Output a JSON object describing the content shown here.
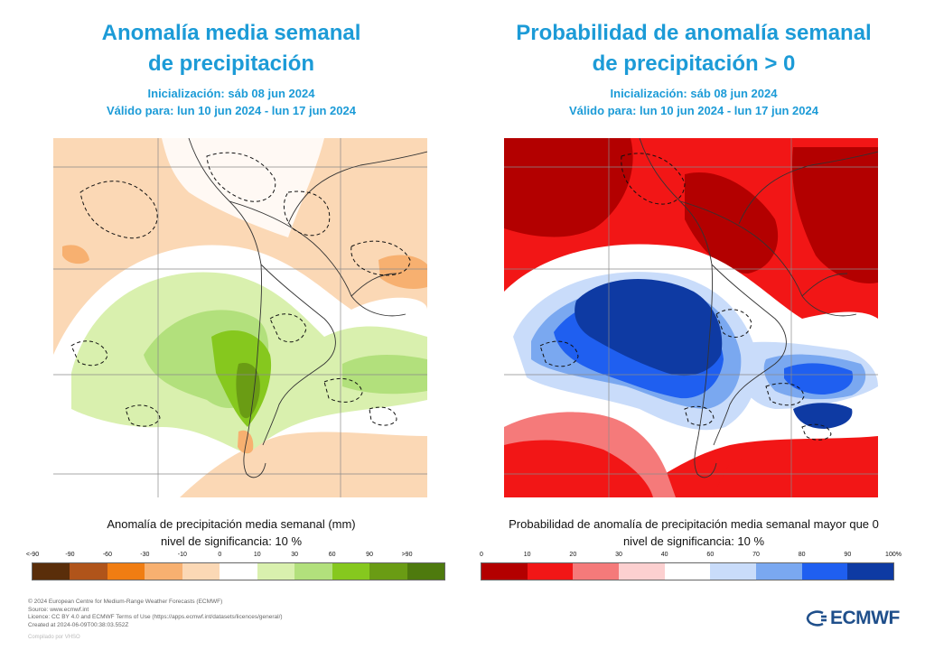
{
  "left_panel": {
    "title_line1": "Anomalía media semanal",
    "title_line2": "de precipitación",
    "init": "Inicialización: sáb 08 jun 2024",
    "valid": "Válido para: lun 10 jun 2024 - lun 17 jun 2024",
    "caption_main": "Anomalía de precipitación media semanal (mm)",
    "caption_sig": "nivel de significancia: 10 %",
    "colorbar": {
      "ticks": [
        "<-90",
        "-90",
        "-60",
        "-30",
        "-10",
        "0",
        "10",
        "30",
        "60",
        "90",
        ">90"
      ],
      "colors": [
        "#5a2e0a",
        "#b0541a",
        "#f07d12",
        "#f7b070",
        "#fbd8b5",
        "#ffffff",
        "#d9f0ae",
        "#b2e07c",
        "#86c81e",
        "#6a9c14",
        "#4e7a0e"
      ]
    }
  },
  "right_panel": {
    "title_line1": "Probabilidad de anomalía semanal",
    "title_line2": "de precipitación > 0",
    "init": "Inicialización: sáb 08 jun 2024",
    "valid": "Válido para: lun 10 jun 2024 - lun 17 jun 2024",
    "caption_main": "Probabilidad de anomalía de precipitación media semanal mayor que 0",
    "caption_sig": "nivel de significancia: 10 %",
    "colorbar": {
      "ticks": [
        "0",
        "10",
        "20",
        "30",
        "40",
        "60",
        "70",
        "80",
        "90",
        "100%"
      ],
      "colors": [
        "#b30000",
        "#f21616",
        "#f57a7a",
        "#fcd0d0",
        "#ffffff",
        "#c9dcfa",
        "#7aa8f0",
        "#1f5ff0",
        "#0e3aa3"
      ]
    }
  },
  "footer": {
    "line1": "© 2024 European Centre for Medium-Range Weather Forecasts (ECMWF)",
    "line2": "Source: www.ecmwf.int",
    "line3": "Licence: CC BY 4.0 and ECMWF Terms of Use (https://apps.ecmwf.int/datasets/licences/general/)",
    "line4": "Created at 2024-06-09T00:38:03.552Z",
    "compiled": "Compilado por VHSO"
  },
  "logo": {
    "text": "ECMWF",
    "color": "#1f4f8b"
  }
}
